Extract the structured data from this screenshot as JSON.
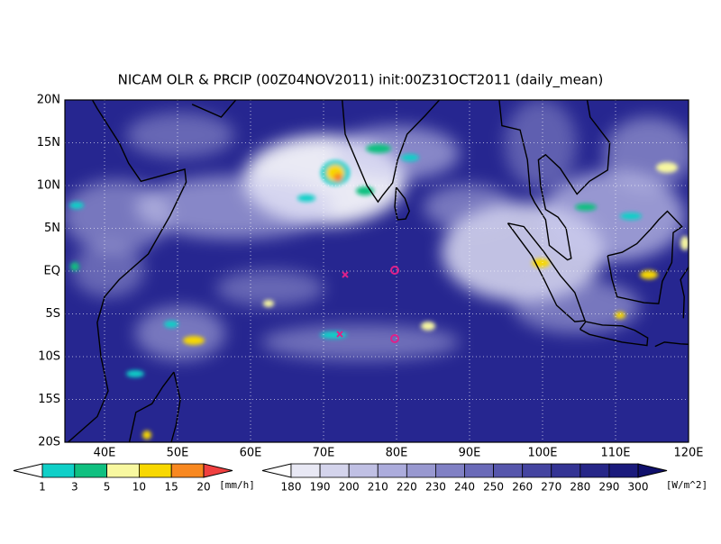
{
  "title": "NICAM OLR & PRCIP (00Z04NOV2011) init:00Z31OCT2011 (daily_mean)",
  "map": {
    "lat_labels": [
      "20N",
      "15N",
      "10N",
      "5N",
      "EQ",
      "5S",
      "10S",
      "15S",
      "20S"
    ],
    "lon_labels": [
      "40E",
      "50E",
      "60E",
      "70E",
      "80E",
      "90E",
      "100E",
      "110E",
      "120E"
    ]
  },
  "precip_colorbar": {
    "labels": [
      "1",
      "3",
      "5",
      "10",
      "15",
      "20"
    ],
    "unit": "[mm/h]",
    "colors": [
      "#ffffff",
      "#10d0c8",
      "#10c080",
      "#f8f8a0",
      "#f8d800",
      "#f88820",
      "#f04040"
    ]
  },
  "olr_colorbar": {
    "labels": [
      "180",
      "190",
      "200",
      "210",
      "220",
      "230",
      "240",
      "250",
      "260",
      "270",
      "280",
      "290",
      "300"
    ],
    "unit": "[W/m^2]",
    "colors": [
      "#ffffff",
      "#e8e8f4",
      "#d4d4ec",
      "#c0c0e4",
      "#acacdc",
      "#9898d0",
      "#8080c4",
      "#6a6ab8",
      "#5656ac",
      "#4444a0",
      "#343494",
      "#262688",
      "#1a1a7c",
      "#10106c"
    ]
  }
}
